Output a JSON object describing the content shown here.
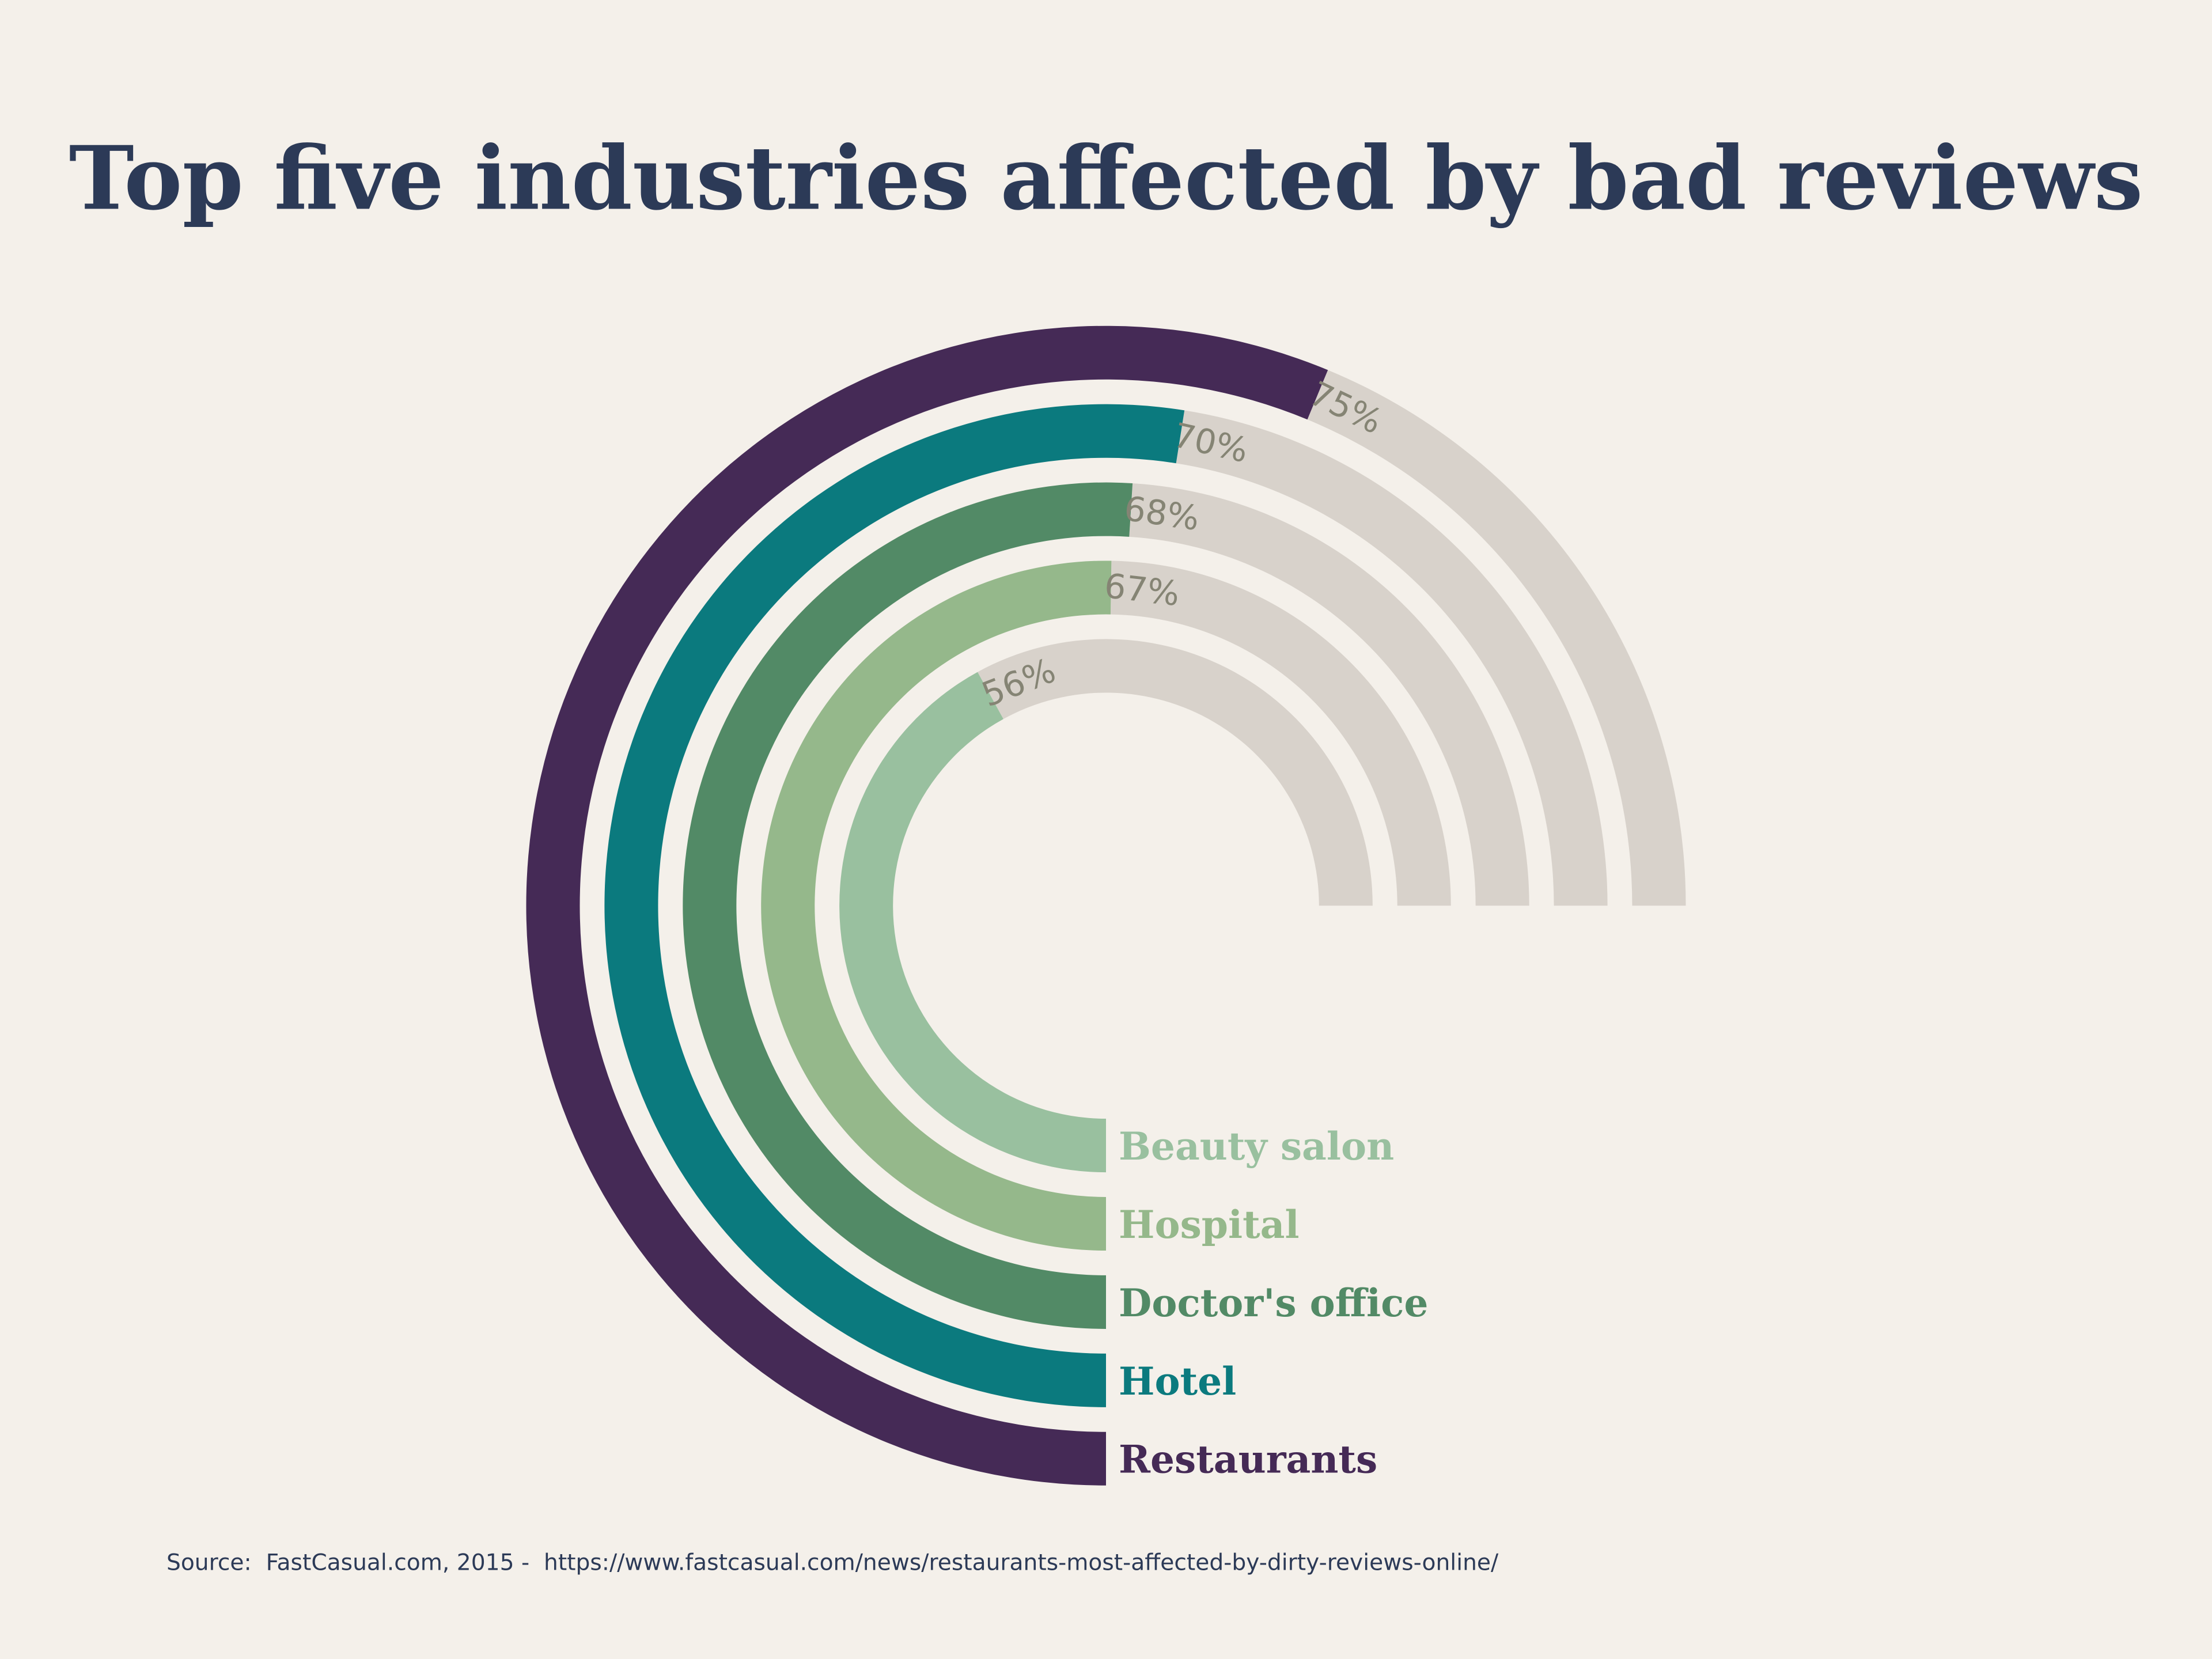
{
  "chart_data": {
    "type": "radial-bar",
    "title": "Top five industries affected by bad reviews",
    "max_percent": 100,
    "arc_span": "270 degrees, starting at bottom, clockwise",
    "track_color": "#d8d2cb",
    "background_color": "#f4f0ea",
    "series": [
      {
        "name": "Restaurants",
        "value": 75,
        "label": "75%",
        "color": "#452a56"
      },
      {
        "name": "Hotel",
        "value": 70,
        "label": "70%",
        "color": "#0b7a7e"
      },
      {
        "name": "Doctor's office",
        "value": 68,
        "label": "68%",
        "color": "#528a66"
      },
      {
        "name": "Hospital",
        "value": 67,
        "label": "67%",
        "color": "#95b88b"
      },
      {
        "name": "Beauty salon",
        "value": 56,
        "label": "56%",
        "color": "#99c09f"
      }
    ],
    "source": "Source:  FastCasual.com, 2015 -  https://www.fastcasual.com/news/restaurants-most-affected-by-dirty-reviews-online/"
  }
}
